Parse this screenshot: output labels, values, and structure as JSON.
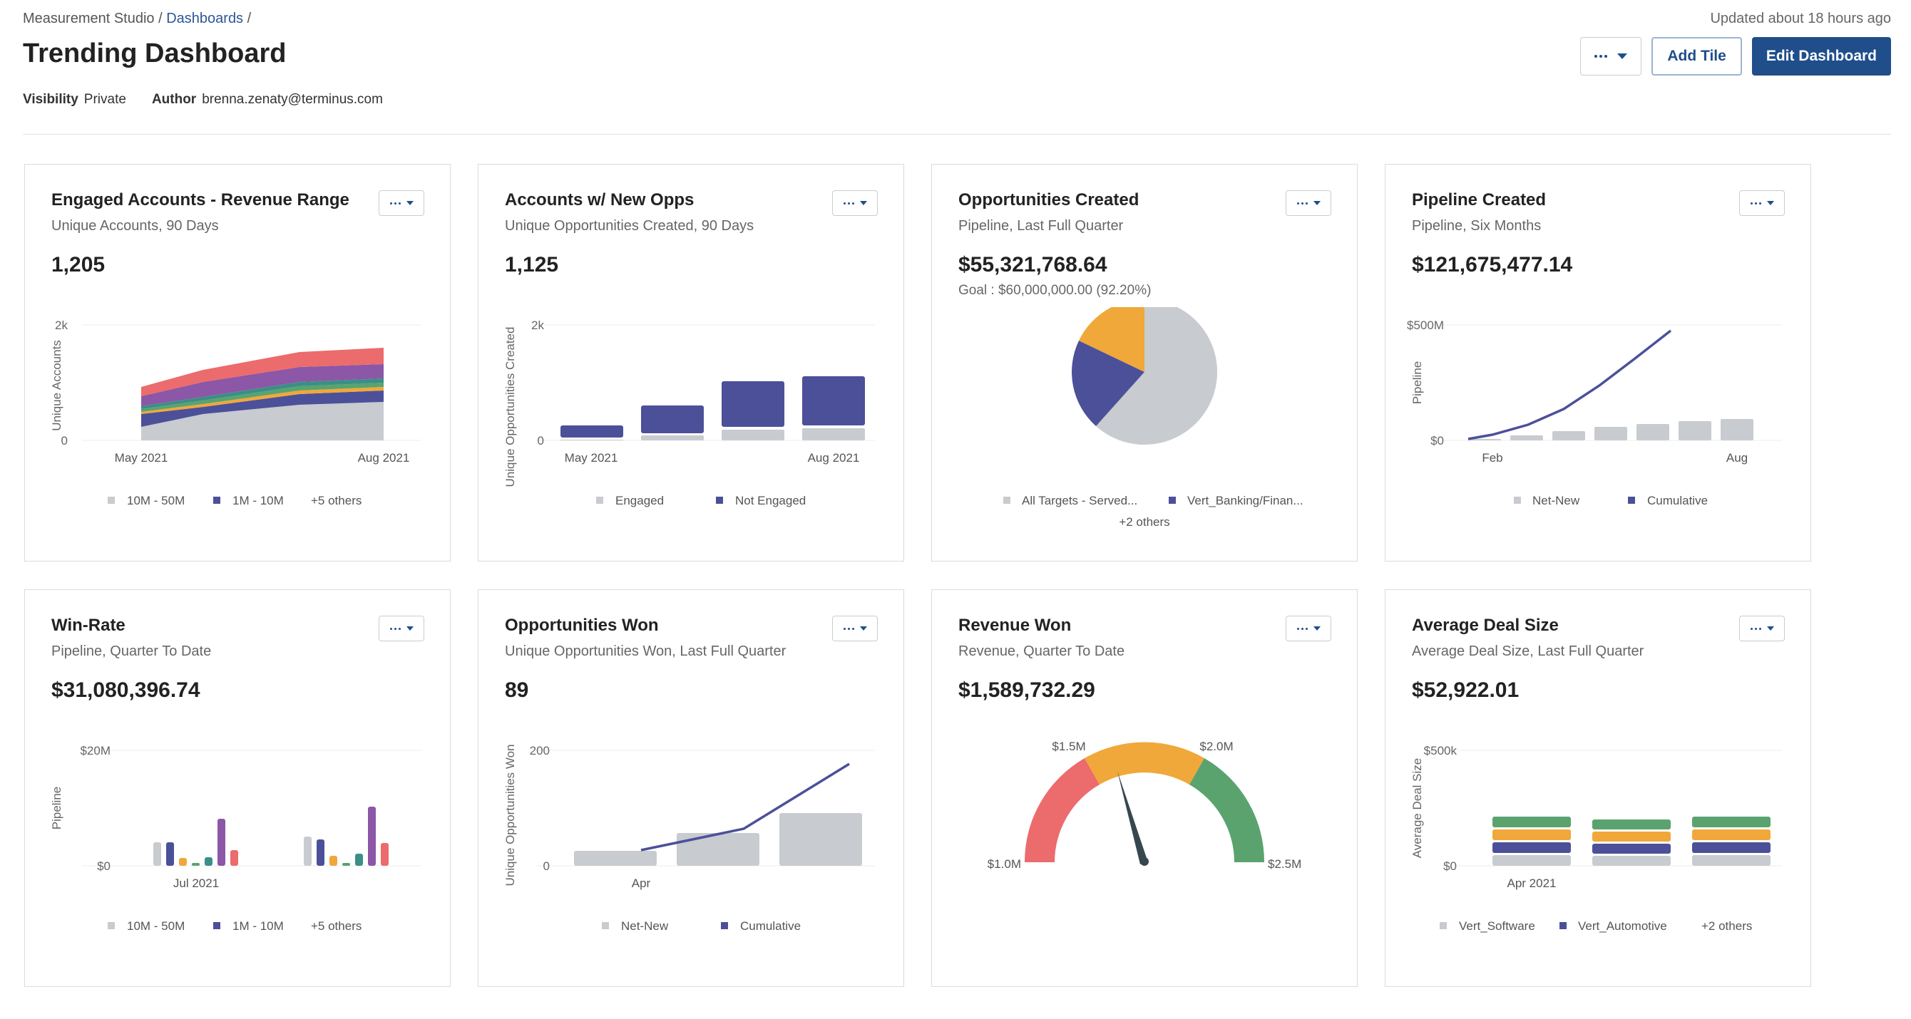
{
  "breadcrumb": {
    "root": "Measurement Studio",
    "sep1": " / ",
    "link": "Dashboards",
    "sep2": " /"
  },
  "updated": "Updated about 18 hours ago",
  "title": "Trending Dashboard",
  "meta": {
    "visibility_label": "Visibility",
    "visibility_value": "Private",
    "author_label": "Author",
    "author_value": "brenna.zenaty@terminus.com"
  },
  "actions": {
    "add_tile": "Add Tile",
    "edit_dashboard": "Edit Dashboard"
  },
  "colors": {
    "primary": "#1f4e8a",
    "gray": "#c8cbcf",
    "indigo": "#4c5099",
    "orange": "#f0a83a",
    "red": "#ec6b6c",
    "green": "#5aa36f",
    "purple": "#8b57a6",
    "teal": "#3a8f86"
  },
  "tiles": [
    {
      "title": "Engaged Accounts - Revenue Range",
      "subtitle": "Unique Accounts, 90 Days",
      "value": "1,205",
      "chart": {
        "ylabel": "Unique Accounts",
        "ytop": "2k",
        "ybottom": "0",
        "xleft": "May 2021",
        "xright": "Aug 2021",
        "legend": [
          "10M - 50M",
          "1M - 10M",
          "+5 others"
        ]
      }
    },
    {
      "title": "Accounts w/ New Opps",
      "subtitle": "Unique Opportunities Created, 90 Days",
      "value": "1,125",
      "chart": {
        "ylabel": "Unique Opportunities Created",
        "ytop": "2k",
        "ybottom": "0",
        "xleft": "May 2021",
        "xright": "Aug 2021",
        "legend": [
          "Engaged",
          "Not Engaged"
        ]
      }
    },
    {
      "title": "Opportunities Created",
      "subtitle": "Pipeline, Last Full Quarter",
      "value": "$55,321,768.64",
      "goal": "Goal : $60,000,000.00 (92.20%)",
      "chart": {
        "legend": [
          "All Targets - Served...",
          "Vert_Banking/Finan...",
          "+2 others"
        ]
      }
    },
    {
      "title": "Pipeline Created",
      "subtitle": "Pipeline, Six Months",
      "value": "$121,675,477.14",
      "chart": {
        "ylabel": "Pipeline",
        "ytop": "$500M",
        "ybottom": "$0",
        "xleft": "Feb",
        "xright": "Aug",
        "legend": [
          "Net-New",
          "Cumulative"
        ]
      }
    },
    {
      "title": "Win-Rate",
      "subtitle": "Pipeline, Quarter To Date",
      "value": "$31,080,396.74",
      "chart": {
        "ylabel": "Pipeline",
        "ytop": "$20M",
        "ybottom": "$0",
        "xmid": "Jul 2021",
        "legend": [
          "10M - 50M",
          "1M - 10M",
          "+5 others"
        ]
      }
    },
    {
      "title": "Opportunities Won",
      "subtitle": "Unique Opportunities Won, Last Full Quarter",
      "value": "89",
      "chart": {
        "ylabel": "Unique Opportunities Won",
        "ytop": "200",
        "ybottom": "0",
        "xleft": "Apr",
        "legend": [
          "Net-New",
          "Cumulative"
        ]
      }
    },
    {
      "title": "Revenue Won",
      "subtitle": "Revenue, Quarter To Date",
      "value": "$1,589,732.29",
      "chart": {
        "g_min": "$1.0M",
        "g_a": "$1.5M",
        "g_b": "$2.0M",
        "g_max": "$2.5M"
      }
    },
    {
      "title": "Average Deal Size",
      "subtitle": "Average Deal Size, Last Full Quarter",
      "value": "$52,922.01",
      "chart": {
        "ylabel": "Average Deal Size",
        "ytop": "$500k",
        "ybottom": "$0",
        "xleft": "Apr 2021",
        "legend": [
          "Vert_Software",
          "Vert_Automotive",
          "+2 others"
        ]
      }
    }
  ]
}
